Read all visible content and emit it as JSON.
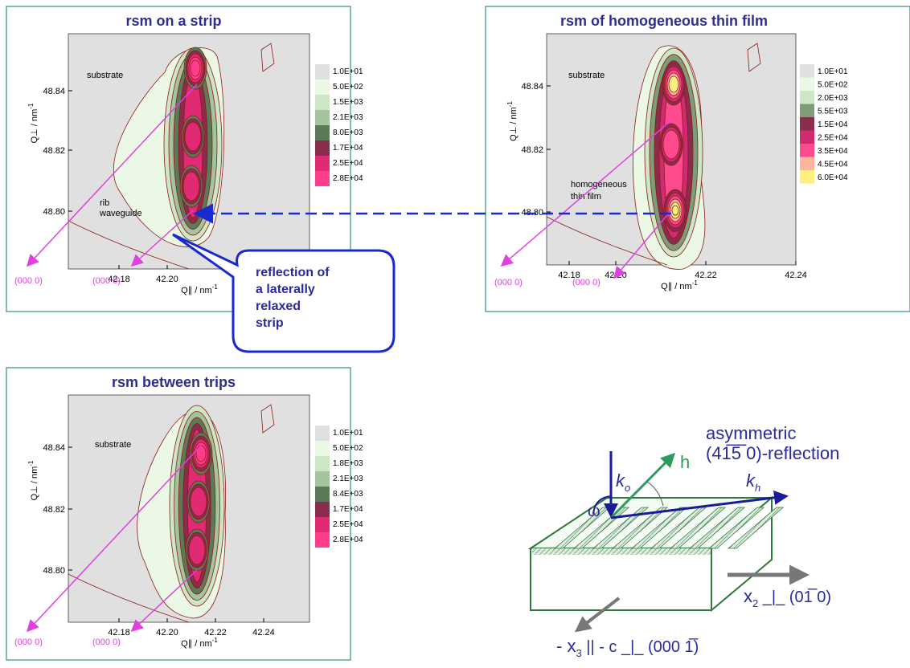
{
  "panels": [
    {
      "title": {
        "prefix": "rsm",
        "rest": " on a strip"
      },
      "y_label": {
        "main": "Q⊥ / nm",
        "sup": "-1"
      },
      "x_label": {
        "main": "Q∥ / nm",
        "sup": "-1"
      },
      "x_ticks": [
        "42.18",
        "42.20"
      ],
      "y_ticks": [
        "48.84",
        "48.82",
        "48.80"
      ],
      "annotations": [
        "substrate",
        "rib",
        "waveguide"
      ],
      "origins": [
        "(000 0)",
        "(000 0)"
      ],
      "legend": [
        {
          "label": "1.0E+01",
          "color": "#e0e0e0"
        },
        {
          "label": "5.0E+02",
          "color": "#ecf8e6"
        },
        {
          "label": "1.5E+03",
          "color": "#cde6c6"
        },
        {
          "label": "2.1E+03",
          "color": "#a3c49c"
        },
        {
          "label": "8.0E+03",
          "color": "#5d7a58"
        },
        {
          "label": "1.7E+04",
          "color": "#8a2c4c"
        },
        {
          "label": "2.5E+04",
          "color": "#e02a74"
        },
        {
          "label": "2.8E+04",
          "color": "#ff3d8a"
        }
      ]
    },
    {
      "title": {
        "prefix": "rsm",
        "rest": " of homogeneous thin film"
      },
      "y_label": {
        "main": "Q⊥ / nm",
        "sup": "-1"
      },
      "x_label": {
        "main": "Q∥ / nm",
        "sup": "-1"
      },
      "x_ticks": [
        "42.18",
        "42.20",
        "42.22",
        "42.24"
      ],
      "y_ticks": [
        "48.84",
        "48.82",
        "48.80"
      ],
      "annotations": [
        "substrate",
        "homogeneous",
        "thin film"
      ],
      "origins": [
        "(000 0)",
        "(000 0)"
      ],
      "legend": [
        {
          "label": "1.0E+01",
          "color": "#e0e0e0"
        },
        {
          "label": "5.0E+02",
          "color": "#ecf8e6"
        },
        {
          "label": "2.0E+03",
          "color": "#cde6c6"
        },
        {
          "label": "5.5E+03",
          "color": "#7f9c78"
        },
        {
          "label": "1.5E+04",
          "color": "#8a2c4c"
        },
        {
          "label": "2.5E+04",
          "color": "#d02a70"
        },
        {
          "label": "3.5E+04",
          "color": "#ff4a8e"
        },
        {
          "label": "4.5E+04",
          "color": "#ffb49c"
        },
        {
          "label": "6.0E+04",
          "color": "#ffef80"
        }
      ]
    },
    {
      "title": {
        "prefix": "rsm",
        "rest": " between trips"
      },
      "y_label": {
        "main": "Q⊥ / nm",
        "sup": "-1"
      },
      "x_label": {
        "main": "Q∥ / nm",
        "sup": "-1"
      },
      "x_ticks": [
        "42.18",
        "42.20",
        "42.22",
        "42.24"
      ],
      "y_ticks": [
        "48.84",
        "48.82",
        "48.80"
      ],
      "annotations": [
        "substrate"
      ],
      "origins": [
        "(000 0)",
        "(000 0)"
      ],
      "legend": [
        {
          "label": "1.0E+01",
          "color": "#e0e0e0"
        },
        {
          "label": "5.0E+02",
          "color": "#ecf8e6"
        },
        {
          "label": "1.8E+03",
          "color": "#cde6c6"
        },
        {
          "label": "2.1E+03",
          "color": "#a3c49c"
        },
        {
          "label": "8.4E+03",
          "color": "#5d7a58"
        },
        {
          "label": "1.7E+04",
          "color": "#8a2c4c"
        },
        {
          "label": "2.5E+04",
          "color": "#e02a74"
        },
        {
          "label": "2.8E+04",
          "color": "#ff3d8a"
        }
      ]
    }
  ],
  "callout": [
    "reflection of",
    "a laterally",
    "relaxed",
    "strip"
  ],
  "diagram": {
    "title": [
      "asymmetric",
      "(41̅5̅ 0)-reflection"
    ],
    "k0": {
      "main": "k",
      "sub": "o"
    },
    "h": "h",
    "kh": {
      "main": "k",
      "sub": "h"
    },
    "omega": "ω",
    "x2": {
      "main": "x",
      "sub": "2",
      "rest": " _|_ (01̅ 0)"
    },
    "x3": {
      "main": "- x",
      "sub": "3",
      "rest": " || - c _|_ (000 1̅)"
    }
  }
}
